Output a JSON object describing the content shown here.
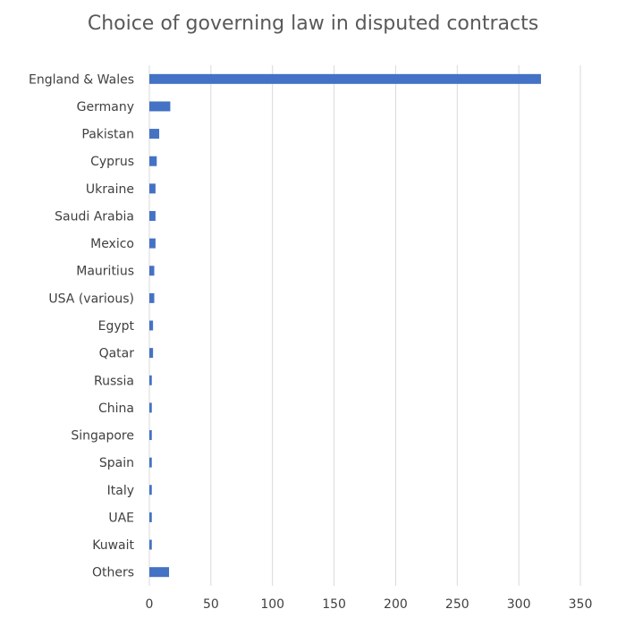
{
  "chart_data": {
    "type": "bar",
    "orientation": "horizontal",
    "title": "Choice of governing law in disputed contracts",
    "categories": [
      "England & Wales",
      "Germany",
      "Pakistan",
      "Cyprus",
      "Ukraine",
      "Saudi Arabia",
      "Mexico",
      "Mauritius",
      "USA (various)",
      "Egypt",
      "Qatar",
      "Russia",
      "China",
      "Singapore",
      "Spain",
      "Italy",
      "UAE",
      "Kuwait",
      "Others"
    ],
    "values": [
      318,
      17,
      8,
      6,
      5,
      5,
      5,
      4,
      4,
      3,
      3,
      2,
      2,
      2,
      2,
      2,
      2,
      2,
      16
    ],
    "xlim": [
      0,
      350
    ],
    "xticks": [
      0,
      50,
      100,
      150,
      200,
      250,
      300,
      350
    ],
    "xtick_labels": [
      "0",
      "50",
      "100",
      "150",
      "200",
      "250",
      "300",
      "350"
    ],
    "grid": "vertical",
    "bar_color": "#4472C4",
    "grid_color": "#D9D9D9",
    "xlabel": "",
    "ylabel": ""
  }
}
